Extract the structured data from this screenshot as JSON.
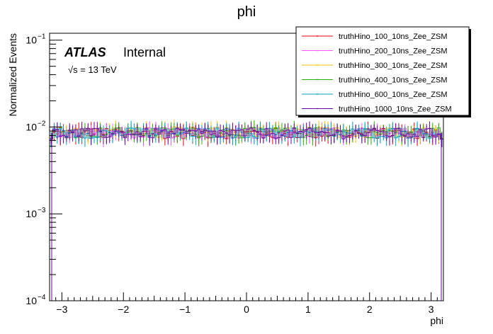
{
  "chart_data": {
    "type": "line",
    "title": "phi",
    "xlabel": "phi",
    "ylabel": "Normalized Events",
    "xlim": [
      -3.2,
      3.2
    ],
    "ylim": [
      0.0001,
      0.12
    ],
    "yscale": "log",
    "x_ticks": [
      "−3",
      "−2",
      "−1",
      "0",
      "1",
      "2",
      "3"
    ],
    "x_tick_values": [
      -3,
      -2,
      -1,
      0,
      1,
      2,
      3
    ],
    "y_ticks": [
      {
        "base": "10",
        "exp": "−4",
        "value": 0.0001
      },
      {
        "base": "10",
        "exp": "−3",
        "value": 0.001
      },
      {
        "base": "10",
        "exp": "−2",
        "value": 0.01
      },
      {
        "base": "10",
        "exp": "−1",
        "value": 0.1
      }
    ],
    "atlas_label": "ATLAS",
    "atlas_status": "Internal",
    "energy_label": "√s = 13 TeV",
    "legend_position": "top-right",
    "series": [
      {
        "name": "truthHino_100_10ns_Zee_ZSM",
        "color": "#e8000b",
        "level": 0.0085
      },
      {
        "name": "truthHino_200_10ns_Zee_ZSM",
        "color": "#ff55ff",
        "level": 0.0086
      },
      {
        "name": "truthHino_300_10ns_Zee_ZSM",
        "color": "#f5c200",
        "level": 0.0088
      },
      {
        "name": "truthHino_400_10ns_Zee_ZSM",
        "color": "#22b000",
        "level": 0.0087
      },
      {
        "name": "truthHino_600_10ns_Zee_ZSM",
        "color": "#00a0c8",
        "level": 0.0086
      },
      {
        "name": "truthHino_1000_10ns_Zee_ZSM",
        "color": "#6a00a8",
        "level": 0.0085
      }
    ],
    "n_bins": 128
  }
}
